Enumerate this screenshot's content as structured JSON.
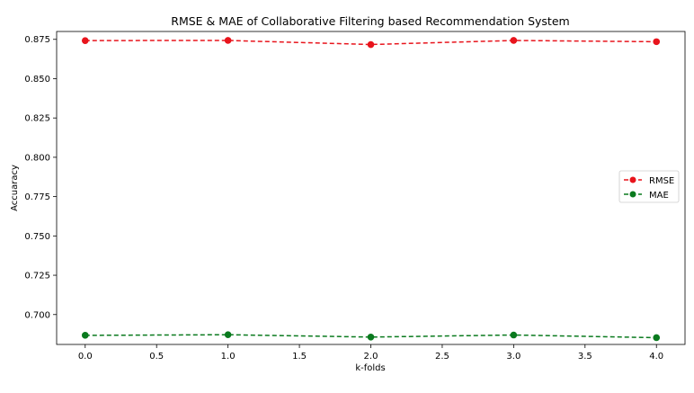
{
  "chart_data": {
    "type": "line",
    "title": "RMSE & MAE of Collaborative Filtering based Recommendation System",
    "xlabel": "k-folds",
    "ylabel": "Accuaracy",
    "x": [
      0,
      1,
      2,
      3,
      4
    ],
    "xlim": [
      -0.2,
      4.2
    ],
    "ylim": [
      0.681,
      0.88
    ],
    "xticks": [
      0.0,
      0.5,
      1.0,
      1.5,
      2.0,
      2.5,
      3.0,
      3.5,
      4.0
    ],
    "xtick_labels": [
      "0.0",
      "0.5",
      "1.0",
      "1.5",
      "2.0",
      "2.5",
      "3.0",
      "3.5",
      "4.0"
    ],
    "yticks": [
      0.7,
      0.725,
      0.75,
      0.775,
      0.8,
      0.825,
      0.85,
      0.875
    ],
    "ytick_labels": [
      "0.700",
      "0.725",
      "0.750",
      "0.775",
      "0.800",
      "0.825",
      "0.850",
      "0.875"
    ],
    "grid": false,
    "legend_position": "center-right",
    "series": [
      {
        "name": "RMSE",
        "values": [
          0.8742,
          0.8743,
          0.8717,
          0.8743,
          0.8735
        ],
        "color": "#e8141c",
        "style": "dashed",
        "marker": "circle"
      },
      {
        "name": "MAE",
        "values": [
          0.6868,
          0.6872,
          0.6857,
          0.687,
          0.6853
        ],
        "color": "#0a7a1e",
        "style": "dashed",
        "marker": "circle"
      }
    ]
  }
}
